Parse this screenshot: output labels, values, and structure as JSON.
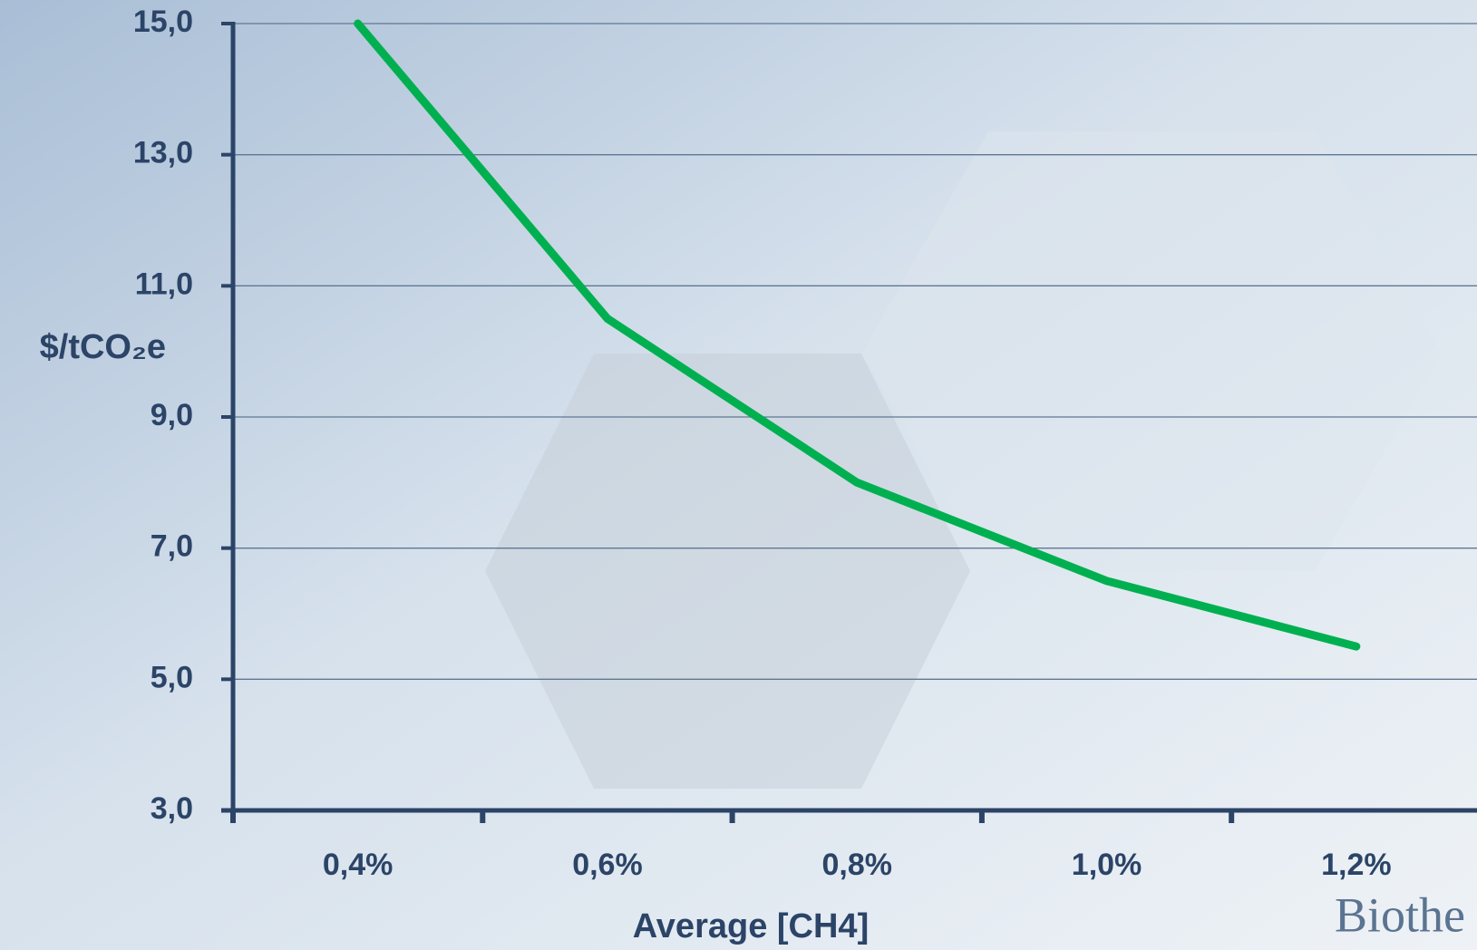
{
  "chart_data": {
    "type": "line",
    "y_axis_label": "$/tCO₂e",
    "x_axis_label": "Average [CH4]",
    "watermark": "Biothe",
    "categories": [
      "0,4%",
      "0,6%",
      "0,8%",
      "1,0%",
      "1,2%"
    ],
    "series": [
      {
        "name": "$/tCO2e",
        "color": "#00b050",
        "values": [
          15.0,
          10.5,
          8.0,
          6.5,
          5.5
        ]
      }
    ],
    "ylim": [
      3,
      15
    ],
    "yticks": [
      {
        "value": 3,
        "label": "3,0"
      },
      {
        "value": 5,
        "label": "5,0"
      },
      {
        "value": 7,
        "label": "7,0"
      },
      {
        "value": 9,
        "label": "9,0"
      },
      {
        "value": 11,
        "label": "11,0"
      },
      {
        "value": 13,
        "label": "13,0"
      },
      {
        "value": 15,
        "label": "15,0"
      }
    ],
    "grid": true
  }
}
